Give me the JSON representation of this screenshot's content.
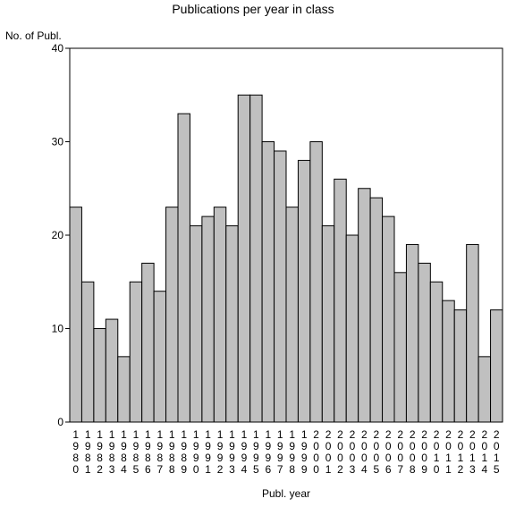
{
  "chart_data": {
    "type": "bar",
    "title": "Publications per year in class",
    "ylabel": "No. of Publ.",
    "xlabel": "Publ. year",
    "ylim": [
      0,
      40
    ],
    "yticks": [
      0,
      10,
      20,
      30,
      40
    ],
    "grid": false,
    "categories": [
      "1980",
      "1981",
      "1982",
      "1983",
      "1984",
      "1985",
      "1986",
      "1987",
      "1988",
      "1989",
      "1990",
      "1991",
      "1992",
      "1993",
      "1994",
      "1995",
      "1996",
      "1997",
      "1998",
      "1999",
      "2000",
      "2001",
      "2002",
      "2003",
      "2004",
      "2005",
      "2006",
      "2007",
      "2008",
      "2009",
      "2010",
      "2011",
      "2012",
      "2013",
      "2014",
      "2015"
    ],
    "values": [
      23,
      15,
      10,
      11,
      7,
      15,
      17,
      14,
      23,
      33,
      21,
      22,
      23,
      21,
      35,
      35,
      30,
      29,
      23,
      28,
      30,
      21,
      26,
      20,
      25,
      24,
      22,
      16,
      19,
      17,
      15,
      13,
      12,
      19,
      7,
      12
    ],
    "bar_color": "#c0c0c0",
    "bar_stroke": "#000000"
  }
}
